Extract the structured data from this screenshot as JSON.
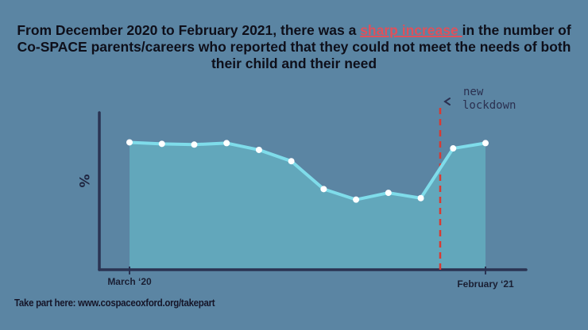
{
  "title": {
    "part1": "From December 2020 to February 2021, there was a ",
    "highlight": "sharp increase ",
    "part2": "in the number of Co-SPACE parents/careers who reported that they could not meet the needs of both their child and their need"
  },
  "footer": "Take part here: www.cospaceoxford.org/takepart",
  "colors": {
    "background": "#5b85a3",
    "area": "#62a7bb",
    "line": "#7fdcea",
    "axis": "#2a3352",
    "marker": "#d83a33",
    "highlight": "#e0505a"
  },
  "chart_data": {
    "type": "area",
    "title": "",
    "xlabel": "",
    "ylabel": "%",
    "x_ticks": [
      "March ‘20",
      "February ‘21"
    ],
    "x": [
      1,
      2,
      3,
      4,
      5,
      6,
      7,
      8,
      9,
      10,
      11,
      12
    ],
    "values": [
      84.5,
      83.5,
      83.0,
      84.0,
      79.5,
      72.0,
      53.5,
      46.5,
      51.0,
      47.5,
      80.5,
      84.0
    ],
    "ylim": [
      0,
      100
    ],
    "annotation": {
      "label": "new lockdown",
      "x": 10.6
    }
  }
}
